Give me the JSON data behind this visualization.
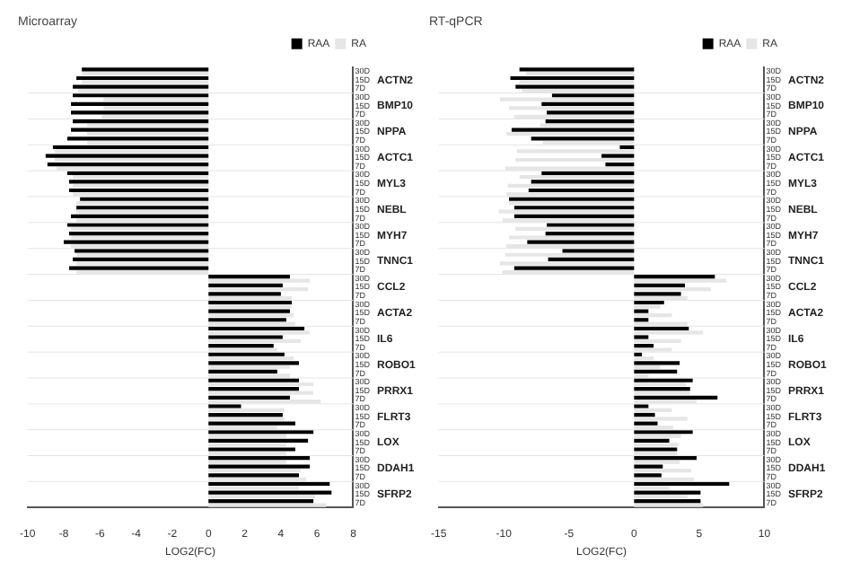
{
  "chart_data": [
    {
      "type": "bar",
      "orientation": "horizontal",
      "title": "Microarray",
      "xlabel": "LOG2(FC)",
      "legend": "top right",
      "categories": [
        "30D",
        "15D",
        "7D",
        "30D",
        "15D",
        "7D",
        "30D",
        "15D",
        "7D",
        "30D",
        "15D",
        "7D",
        "30D",
        "15D",
        "7D",
        "30D",
        "15D",
        "7D",
        "30D",
        "15D",
        "7D",
        "30D",
        "15D",
        "7D",
        "30D",
        "15D",
        "7D",
        "30D",
        "15D",
        "7D",
        "30D",
        "15D",
        "7D",
        "30D",
        "15D",
        "7D",
        "30D",
        "15D",
        "7D",
        "30D",
        "15D",
        "7D",
        "30D",
        "15D",
        "7D",
        "30D",
        "15D",
        "7D",
        "30D",
        "15D",
        "7D"
      ],
      "annotations": [
        "ACTN2",
        "BMP10",
        "NPPA",
        "ACTC1",
        "MYL3",
        "NEBL",
        "MYH7",
        "TNNC1",
        "CCL2",
        "ACTA2",
        "IL6",
        "ROBO1",
        "PRRX1",
        "FLRT3",
        "LOX",
        "DDAH1",
        "SFRP2"
      ],
      "series": [
        {
          "name": "RAA",
          "color": "#000000",
          "values": [
            -7.0,
            -7.3,
            -7.5,
            -7.5,
            -7.6,
            -7.6,
            -7.5,
            -7.6,
            -7.8,
            -8.6,
            -9.0,
            -8.9,
            -7.8,
            -7.7,
            -7.7,
            -7.1,
            -7.3,
            -7.6,
            -7.8,
            -7.7,
            -8.0,
            -7.4,
            -7.5,
            -7.7,
            4.5,
            4.1,
            4.0,
            4.6,
            4.5,
            4.3,
            5.3,
            4.1,
            3.6,
            4.2,
            5.0,
            3.8,
            5.0,
            5.0,
            4.5,
            1.8,
            4.1,
            4.8,
            5.8,
            5.5,
            4.8,
            5.6,
            5.6,
            5.0,
            6.7,
            6.8,
            5.8
          ]
        },
        {
          "name": "RA",
          "color": "#e6e6e6",
          "values": [
            -7.0,
            -7.0,
            -7.2,
            -5.8,
            -5.8,
            -5.9,
            -6.7,
            -6.7,
            -6.7,
            -8.5,
            -8.5,
            -8.4,
            -7.5,
            -7.5,
            -7.5,
            -7.3,
            -7.3,
            -7.3,
            -7.6,
            -7.6,
            -7.6,
            -7.3,
            -7.3,
            -7.3,
            5.6,
            5.5,
            4.6,
            4.6,
            4.7,
            4.8,
            5.6,
            5.1,
            3.8,
            4.7,
            4.5,
            4.5,
            5.8,
            5.8,
            6.2,
            4.2,
            4.2,
            3.8,
            4.3,
            4.3,
            4.3,
            4.3,
            5.1,
            5.4,
            5.0,
            5.9,
            6.5
          ]
        }
      ],
      "xlim": [
        -10,
        8
      ],
      "xticks": [
        -10,
        -8,
        -6,
        -4,
        -2,
        0,
        2,
        4,
        6,
        8
      ]
    },
    {
      "type": "bar",
      "orientation": "horizontal",
      "title": "RT-qPCR",
      "xlabel": "LOG2(FC)",
      "legend": "top right",
      "categories": [
        "30D",
        "15D",
        "7D",
        "30D",
        "15D",
        "7D",
        "30D",
        "15D",
        "7D",
        "30D",
        "15D",
        "7D",
        "30D",
        "15D",
        "7D",
        "30D",
        "15D",
        "7D",
        "30D",
        "15D",
        "7D",
        "30D",
        "15D",
        "7D",
        "30D",
        "15D",
        "7D",
        "30D",
        "15D",
        "7D",
        "30D",
        "15D",
        "7D",
        "30D",
        "15D",
        "7D",
        "30D",
        "15D",
        "7D",
        "30D",
        "15D",
        "7D",
        "30D",
        "15D",
        "7D",
        "30D",
        "15D",
        "7D",
        "30D",
        "15D",
        "7D"
      ],
      "annotations": [
        "ACTN2",
        "BMP10",
        "NPPA",
        "ACTC1",
        "MYL3",
        "NEBL",
        "MYH7",
        "TNNC1",
        "CCL2",
        "ACTA2",
        "IL6",
        "ROBO1",
        "PRRX1",
        "FLRT3",
        "LOX",
        "DDAH1",
        "SFRP2"
      ],
      "series": [
        {
          "name": "RAA",
          "color": "#000000",
          "values": [
            -8.8,
            -9.5,
            -9.1,
            -6.3,
            -7.1,
            -6.7,
            -6.8,
            -9.4,
            -7.9,
            -1.1,
            -2.5,
            -2.2,
            -7.1,
            -7.9,
            -8.1,
            -9.6,
            -9.2,
            -9.2,
            -6.7,
            -6.8,
            -8.2,
            -5.5,
            -6.6,
            -9.2,
            6.2,
            3.9,
            3.6,
            2.3,
            1.1,
            1.1,
            4.2,
            1.1,
            1.5,
            0.6,
            3.5,
            3.3,
            4.5,
            4.3,
            6.4,
            1.1,
            1.6,
            1.8,
            4.5,
            2.7,
            3.3,
            4.8,
            2.2,
            2.1,
            7.3,
            5.1,
            5.1
          ]
        },
        {
          "name": "RA",
          "color": "#e6e6e6",
          "values": [
            -8.3,
            -8.8,
            -8.6,
            -10.3,
            -9.6,
            -9.2,
            -7.2,
            -9.8,
            -7.0,
            -9.0,
            -9.1,
            -9.9,
            -8.8,
            -9.7,
            -9.8,
            -9.6,
            -10.4,
            -10.1,
            -9.1,
            -9.6,
            -9.8,
            -9.9,
            -10.3,
            -10.1,
            7.1,
            5.9,
            4.1,
            2.0,
            2.9,
            4.1,
            5.3,
            3.6,
            2.9,
            1.5,
            2.0,
            1.1,
            4.0,
            4.3,
            4.8,
            2.9,
            4.1,
            3.0,
            3.6,
            3.4,
            3.3,
            3.5,
            4.4,
            4.6,
            2.7,
            4.1,
            5.3
          ]
        }
      ],
      "xlim": [
        -15,
        10
      ],
      "xticks": [
        -15,
        -10,
        -5,
        0,
        5,
        10
      ]
    }
  ]
}
